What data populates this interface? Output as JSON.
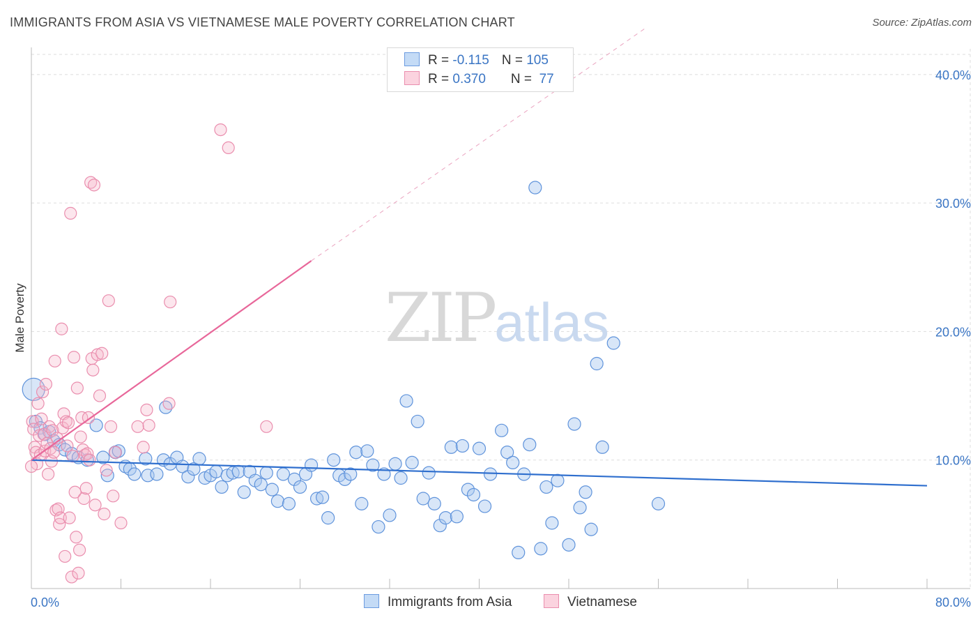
{
  "header": {
    "title": "IMMIGRANTS FROM ASIA VS VIETNAMESE MALE POVERTY CORRELATION CHART",
    "source": "Source: ZipAtlas.com"
  },
  "watermark": {
    "zip": "ZIP",
    "atlas": "atlas"
  },
  "legend": {
    "rows": [
      {
        "r_label": "R = ",
        "r_value": "-0.115",
        "n_label": "N = ",
        "n_value": "105",
        "color": "#a9c8f0"
      },
      {
        "r_label": "R = ",
        "r_value": "0.370",
        "n_label": "N = ",
        "n_value": " 77",
        "color": "#f5b8cb"
      }
    ]
  },
  "colors": {
    "blue": "#3a7fd5",
    "pink": "#e8679a",
    "blue_fill": "#a9c8f0",
    "pink_fill": "#f5b8cb"
  },
  "chart_data": {
    "type": "scatter",
    "title": "IMMIGRANTS FROM ASIA VS VIETNAMESE MALE POVERTY CORRELATION CHART",
    "xlabel": "",
    "ylabel": "Male Poverty",
    "xlim": [
      0,
      80
    ],
    "ylim": [
      0,
      42
    ],
    "x_tick_labels": [
      "0.0%",
      "80.0%"
    ],
    "y_ticks": [
      10,
      20,
      30,
      40
    ],
    "y_tick_labels": [
      "10.0%",
      "20.0%",
      "30.0%",
      "40.0%"
    ],
    "grid": "horizontal dashed",
    "legend_position": "bottom-center",
    "series": [
      {
        "name": "Immigrants from Asia",
        "color": "#3a7fd5",
        "trend": {
          "x": [
            0,
            80
          ],
          "y": [
            10.0,
            8.0
          ]
        },
        "points": [
          [
            0.2,
            15.5
          ],
          [
            0.4,
            13.0
          ],
          [
            0.8,
            12.5
          ],
          [
            1.2,
            12.0
          ],
          [
            1.6,
            12.2
          ],
          [
            2.0,
            11.5
          ],
          [
            2.5,
            11.2
          ],
          [
            3.0,
            10.8
          ],
          [
            3.6,
            10.5
          ],
          [
            4.2,
            10.2
          ],
          [
            5.0,
            10.0
          ],
          [
            5.8,
            12.7
          ],
          [
            6.4,
            10.2
          ],
          [
            6.8,
            8.8
          ],
          [
            7.5,
            10.6
          ],
          [
            7.8,
            10.7
          ],
          [
            8.4,
            9.5
          ],
          [
            8.8,
            9.3
          ],
          [
            9.2,
            8.9
          ],
          [
            10.2,
            10.1
          ],
          [
            10.4,
            8.8
          ],
          [
            11.2,
            8.9
          ],
          [
            11.8,
            10.0
          ],
          [
            12.0,
            14.1
          ],
          [
            12.4,
            9.7
          ],
          [
            13.0,
            10.2
          ],
          [
            13.5,
            9.5
          ],
          [
            14.0,
            8.7
          ],
          [
            14.5,
            9.3
          ],
          [
            15.0,
            10.1
          ],
          [
            15.5,
            8.6
          ],
          [
            16.0,
            8.8
          ],
          [
            16.5,
            9.1
          ],
          [
            17.0,
            7.9
          ],
          [
            17.5,
            8.8
          ],
          [
            18.0,
            9.0
          ],
          [
            18.5,
            9.1
          ],
          [
            19.0,
            7.5
          ],
          [
            19.5,
            9.1
          ],
          [
            20.0,
            8.4
          ],
          [
            20.5,
            8.1
          ],
          [
            21.0,
            9.0
          ],
          [
            21.5,
            7.7
          ],
          [
            22.0,
            6.8
          ],
          [
            22.5,
            8.9
          ],
          [
            23.0,
            6.6
          ],
          [
            23.5,
            8.5
          ],
          [
            24.0,
            7.9
          ],
          [
            24.5,
            8.9
          ],
          [
            25.0,
            9.6
          ],
          [
            25.5,
            7.0
          ],
          [
            26.0,
            7.1
          ],
          [
            26.5,
            5.5
          ],
          [
            27.0,
            10.0
          ],
          [
            27.5,
            8.8
          ],
          [
            28.0,
            8.5
          ],
          [
            28.5,
            8.9
          ],
          [
            29.0,
            10.6
          ],
          [
            29.5,
            6.6
          ],
          [
            30.0,
            10.7
          ],
          [
            30.5,
            9.6
          ],
          [
            31.0,
            4.8
          ],
          [
            31.5,
            8.9
          ],
          [
            32.0,
            5.7
          ],
          [
            32.5,
            9.7
          ],
          [
            33.0,
            8.6
          ],
          [
            33.5,
            14.6
          ],
          [
            34.0,
            9.8
          ],
          [
            34.5,
            13.0
          ],
          [
            35.0,
            7.0
          ],
          [
            35.5,
            9.0
          ],
          [
            36.0,
            6.6
          ],
          [
            36.5,
            4.9
          ],
          [
            37.0,
            5.5
          ],
          [
            37.5,
            11.0
          ],
          [
            38.0,
            5.6
          ],
          [
            38.5,
            11.1
          ],
          [
            39.0,
            7.7
          ],
          [
            39.5,
            7.3
          ],
          [
            40.0,
            10.9
          ],
          [
            40.5,
            6.4
          ],
          [
            41.0,
            8.9
          ],
          [
            42.0,
            12.3
          ],
          [
            42.5,
            10.6
          ],
          [
            43.0,
            9.8
          ],
          [
            43.5,
            2.8
          ],
          [
            44.0,
            8.9
          ],
          [
            44.5,
            11.2
          ],
          [
            45.0,
            31.2
          ],
          [
            45.5,
            3.1
          ],
          [
            46.0,
            7.9
          ],
          [
            46.5,
            5.1
          ],
          [
            47.0,
            8.4
          ],
          [
            48.0,
            3.4
          ],
          [
            48.5,
            12.8
          ],
          [
            49.0,
            6.3
          ],
          [
            49.5,
            7.5
          ],
          [
            50.0,
            4.6
          ],
          [
            50.5,
            17.5
          ],
          [
            51.0,
            11.0
          ],
          [
            52.0,
            19.1
          ],
          [
            56.0,
            6.6
          ]
        ]
      },
      {
        "name": "Vietnamese",
        "color": "#e8679a",
        "trend": {
          "x": [
            0,
            25
          ],
          "y": [
            10.0,
            25.5
          ],
          "dashed_to": [
            55,
            43.7
          ]
        },
        "points": [
          [
            0.1,
            13.0
          ],
          [
            0.2,
            12.4
          ],
          [
            0.3,
            11.0
          ],
          [
            0.4,
            10.6
          ],
          [
            0.5,
            9.7
          ],
          [
            0.6,
            14.4
          ],
          [
            0.7,
            11.9
          ],
          [
            0.8,
            10.4
          ],
          [
            0.9,
            13.2
          ],
          [
            1.0,
            15.3
          ],
          [
            1.1,
            12.0
          ],
          [
            1.2,
            10.7
          ],
          [
            1.3,
            15.9
          ],
          [
            1.4,
            11.3
          ],
          [
            1.5,
            8.9
          ],
          [
            1.6,
            12.6
          ],
          [
            1.7,
            10.9
          ],
          [
            1.8,
            9.9
          ],
          [
            1.9,
            12.3
          ],
          [
            2.0,
            10.6
          ],
          [
            2.1,
            17.7
          ],
          [
            2.2,
            6.1
          ],
          [
            2.3,
            11.7
          ],
          [
            2.4,
            6.2
          ],
          [
            2.5,
            5.0
          ],
          [
            2.6,
            5.5
          ],
          [
            2.7,
            20.2
          ],
          [
            2.8,
            12.5
          ],
          [
            2.9,
            13.6
          ],
          [
            3.0,
            2.5
          ],
          [
            3.1,
            13.0
          ],
          [
            3.2,
            11.1
          ],
          [
            3.3,
            12.9
          ],
          [
            3.4,
            5.5
          ],
          [
            3.5,
            29.2
          ],
          [
            3.6,
            0.9
          ],
          [
            3.7,
            10.3
          ],
          [
            3.8,
            18.0
          ],
          [
            3.9,
            7.5
          ],
          [
            4.0,
            4.0
          ],
          [
            4.1,
            15.6
          ],
          [
            4.2,
            1.2
          ],
          [
            4.3,
            3.0
          ],
          [
            4.4,
            11.8
          ],
          [
            4.5,
            13.3
          ],
          [
            4.6,
            10.8
          ],
          [
            4.7,
            7.0
          ],
          [
            4.8,
            10.4
          ],
          [
            4.9,
            7.8
          ],
          [
            5.0,
            10.5
          ],
          [
            5.1,
            13.3
          ],
          [
            5.2,
            10.0
          ],
          [
            5.3,
            31.6
          ],
          [
            5.4,
            17.9
          ],
          [
            5.5,
            17.0
          ],
          [
            5.6,
            31.4
          ],
          [
            5.7,
            6.5
          ],
          [
            5.9,
            18.2
          ],
          [
            6.1,
            15.0
          ],
          [
            6.3,
            18.3
          ],
          [
            6.5,
            5.8
          ],
          [
            6.7,
            9.2
          ],
          [
            6.9,
            22.4
          ],
          [
            7.1,
            12.6
          ],
          [
            7.3,
            7.2
          ],
          [
            7.5,
            10.6
          ],
          [
            8.0,
            5.1
          ],
          [
            9.5,
            12.6
          ],
          [
            10.0,
            11.0
          ],
          [
            10.3,
            13.9
          ],
          [
            10.5,
            12.7
          ],
          [
            12.3,
            14.4
          ],
          [
            12.4,
            22.3
          ],
          [
            16.9,
            35.7
          ],
          [
            17.6,
            34.3
          ],
          [
            21.0,
            12.6
          ],
          [
            0.0,
            9.5
          ]
        ]
      }
    ]
  },
  "bottom_legend": [
    {
      "label": "Immigrants from Asia",
      "color": "#a9c8f0"
    },
    {
      "label": "Vietnamese",
      "color": "#f5b8cb"
    }
  ]
}
